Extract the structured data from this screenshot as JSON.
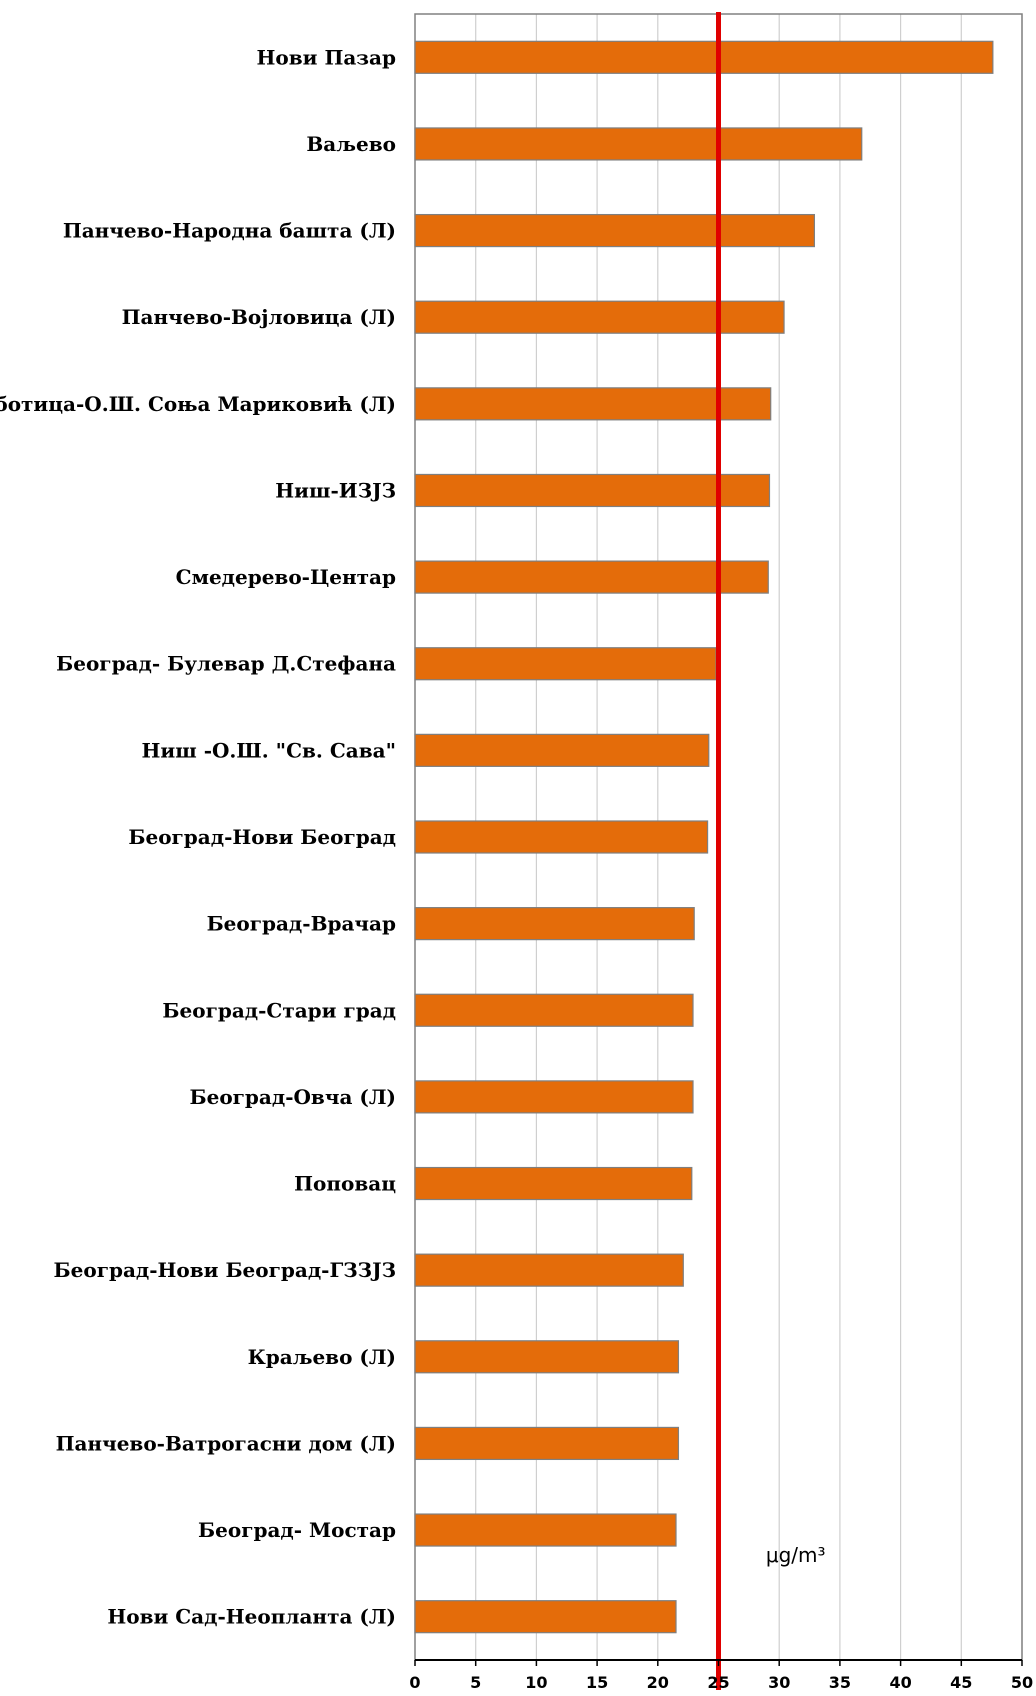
{
  "chart_data": {
    "type": "bar",
    "orientation": "horizontal",
    "categories": [
      "Нови Пазар",
      "Ваљево",
      "Панчево-Народна башта (Л)",
      "Панчево-Војловица (Л)",
      "Суботица-О.Ш. Соња Мариковић (Л)",
      "Ниш-ИЗЈЗ",
      "Смедерево-Центар",
      "Београд- Булевар Д.Стефана",
      "Ниш -О.Ш. \"Св. Сава\"",
      "Београд-Нови Београд",
      "Београд-Врачар",
      "Београд-Стари град",
      "Београд-Овча (Л)",
      "Поповац",
      "Београд-Нови Београд-ГЗЗЈЗ",
      "Краљево (Л)",
      "Панчево-Ватрогасни дом (Л)",
      "Београд- Мостар",
      "Нови Сад-Неопланта  (Л)"
    ],
    "values": [
      47.6,
      36.8,
      32.9,
      30.4,
      29.3,
      29.2,
      29.1,
      24.8,
      24.2,
      24.1,
      23.0,
      22.9,
      22.9,
      22.8,
      22.1,
      21.7,
      21.7,
      21.5,
      21.5
    ],
    "xlim": [
      0,
      50
    ],
    "xticks": [
      0,
      5,
      10,
      15,
      20,
      25,
      30,
      35,
      40,
      45,
      50
    ],
    "limit_value": 25,
    "unit": "μg/m³",
    "grid": true,
    "colors": {
      "bar": "#e46c0a",
      "bar_edge": "#7f7f7f",
      "limit_line": "#e00000",
      "grid": "#cfcfcf",
      "frame": "#808080",
      "axis": "#000000"
    }
  }
}
